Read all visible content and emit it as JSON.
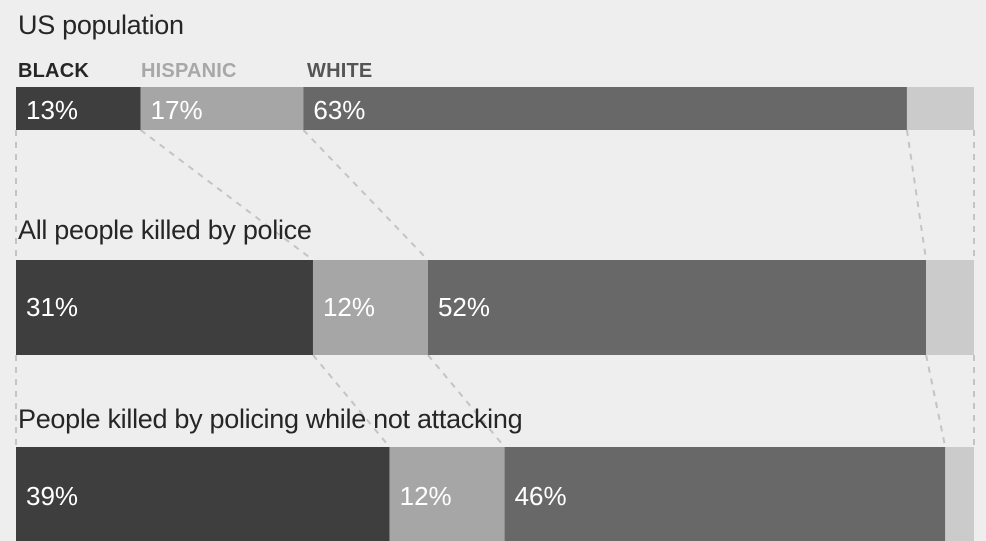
{
  "chart_data": {
    "type": "bar",
    "orientation": "horizontal",
    "stacked": true,
    "normalized_to": 100,
    "categories": [
      "US population",
      "All people killed by police",
      "People killed by policing while not attacking"
    ],
    "series": [
      {
        "name": "BLACK",
        "values": [
          13,
          31,
          39
        ],
        "labels": [
          "13%",
          "31%",
          "39%"
        ],
        "color": "#3e3e3e",
        "legend_color": "#262626"
      },
      {
        "name": "HISPANIC",
        "values": [
          17,
          12,
          12
        ],
        "labels": [
          "17%",
          "12%",
          "12%"
        ],
        "color": "#a6a6a6",
        "legend_color": "#a8a8a8"
      },
      {
        "name": "WHITE",
        "values": [
          63,
          52,
          46
        ],
        "labels": [
          "63%",
          "52%",
          "46%"
        ],
        "color": "#686868",
        "legend_color": "#555555"
      },
      {
        "values": [
          7,
          5,
          3
        ],
        "labels": [
          "",
          "",
          ""
        ],
        "color": "#cbcbcb"
      }
    ],
    "legend_position": "top-left, above first bar",
    "grid": false,
    "connectors": "dashed lines linking segment boundaries between bars"
  }
}
